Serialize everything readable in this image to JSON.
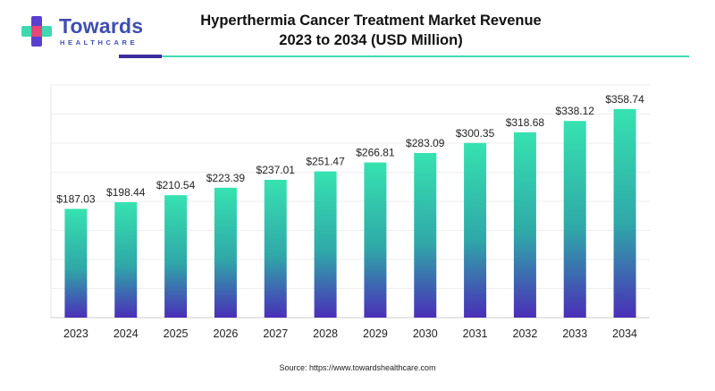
{
  "brand": {
    "name": "Towards",
    "subtitle": "HEALTHCARE",
    "logo_colors": [
      "#5b3fd1",
      "#3fd9b0",
      "#e8457a"
    ]
  },
  "header": {
    "title_line1": "Hyperthermia Cancer Treatment Market Revenue",
    "title_line2": "2023 to 2034 (USD Million)"
  },
  "footer": {
    "source": "Source: https://www.towardshealthcare.com"
  },
  "colors": {
    "bar_top": "#36e2b0",
    "bar_bottom": "#4a2fb8",
    "accent_dark": "#3b2c9e",
    "accent_teal": "#3fd9b0",
    "gridline": "#eeeeee"
  },
  "chart_data": {
    "type": "bar",
    "title": "Hyperthermia Cancer Treatment Market Revenue 2023 to 2034 (USD Million)",
    "categories": [
      "2023",
      "2024",
      "2025",
      "2026",
      "2027",
      "2028",
      "2029",
      "2030",
      "2031",
      "2032",
      "2033",
      "2034"
    ],
    "values": [
      187.03,
      198.44,
      210.54,
      223.39,
      237.01,
      251.47,
      266.81,
      283.09,
      300.35,
      318.68,
      338.12,
      358.74
    ],
    "value_labels": [
      "$187.03",
      "$198.44",
      "$210.54",
      "$223.39",
      "$237.01",
      "$251.47",
      "$266.81",
      "$283.09",
      "$300.35",
      "$318.68",
      "$338.12",
      "$358.74"
    ],
    "xlabel": "",
    "ylabel": "",
    "ylim": [
      0,
      400
    ],
    "grid": true,
    "legend": "none"
  }
}
